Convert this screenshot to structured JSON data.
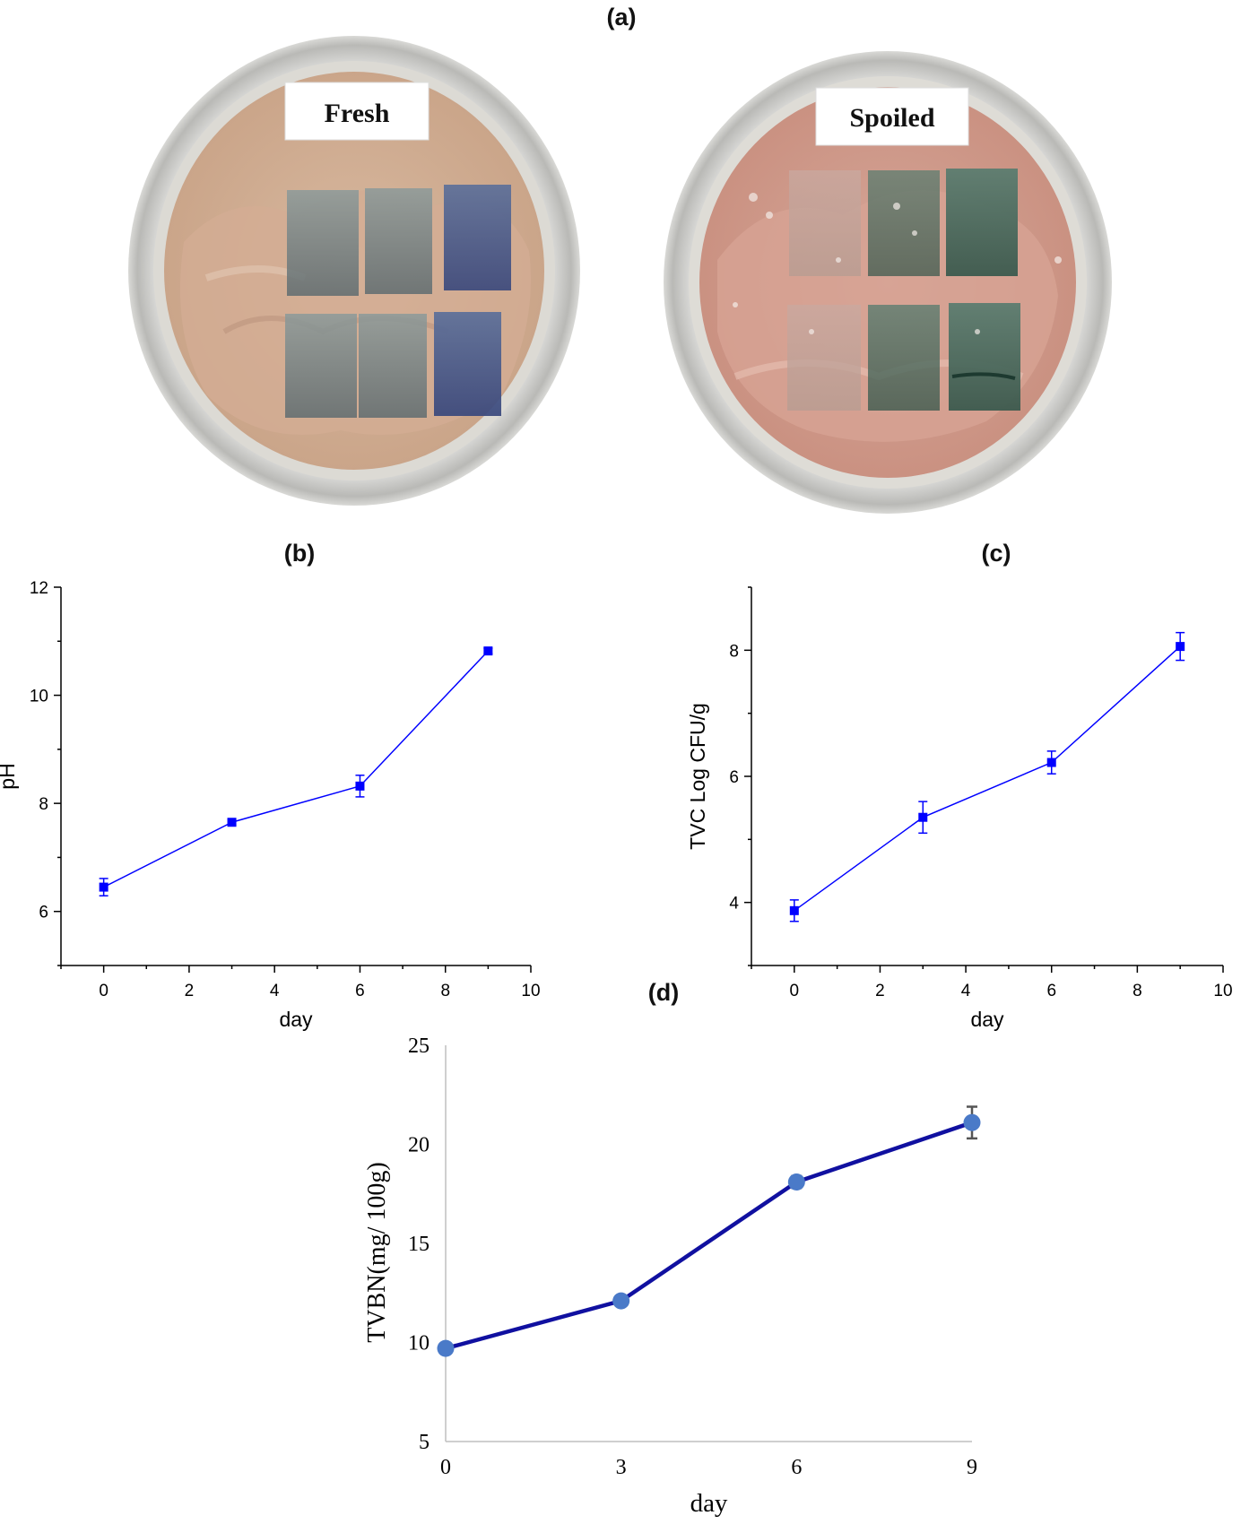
{
  "panels": {
    "a": "(a)",
    "b": "(b)",
    "c": "(c)",
    "d": "(d)"
  },
  "photo": {
    "fresh_label": "Fresh",
    "spoiled_label": "Spoiled"
  },
  "colors": {
    "series_bc": "#0000ff",
    "line_d": "#1010a0",
    "marker_d": "#4a7ac8",
    "errbar_d": "#555555",
    "axis_d": "#bfbfbf"
  },
  "chart_data": [
    {
      "type": "line",
      "panel": "b",
      "xlabel": "day",
      "ylabel": "pH",
      "xlim": [
        -1,
        10
      ],
      "ylim": [
        5,
        12
      ],
      "xticks": [
        0,
        2,
        4,
        6,
        8,
        10
      ],
      "yticks": [
        6,
        8,
        10,
        12
      ],
      "x": [
        0,
        3,
        6,
        9
      ],
      "y": [
        6.45,
        7.65,
        8.32,
        10.82
      ],
      "err": [
        0.16,
        0.05,
        0.2,
        0.05
      ],
      "grid": false
    },
    {
      "type": "line",
      "panel": "c",
      "xlabel": "day",
      "ylabel": "TVC Log CFU/g",
      "xlim": [
        -1,
        10
      ],
      "ylim": [
        3,
        9
      ],
      "xticks": [
        0,
        2,
        4,
        6,
        8,
        10
      ],
      "yticks": [
        4,
        6,
        8
      ],
      "x": [
        0,
        3,
        6,
        9
      ],
      "y": [
        3.87,
        5.35,
        6.22,
        8.06
      ],
      "err": [
        0.17,
        0.25,
        0.18,
        0.22
      ],
      "grid": false
    },
    {
      "type": "line",
      "panel": "d",
      "xlabel": "day",
      "ylabel": "TVBN(mg/ 100g)",
      "xlim": [
        0,
        9
      ],
      "ylim": [
        5,
        25
      ],
      "xticks": [
        0,
        3,
        6,
        9
      ],
      "yticks": [
        5,
        10,
        15,
        20,
        25
      ],
      "x": [
        0,
        3,
        6,
        9
      ],
      "y": [
        9.7,
        12.1,
        18.1,
        21.1
      ],
      "err": [
        0.0,
        0.0,
        0.3,
        0.8
      ],
      "grid": false
    }
  ]
}
